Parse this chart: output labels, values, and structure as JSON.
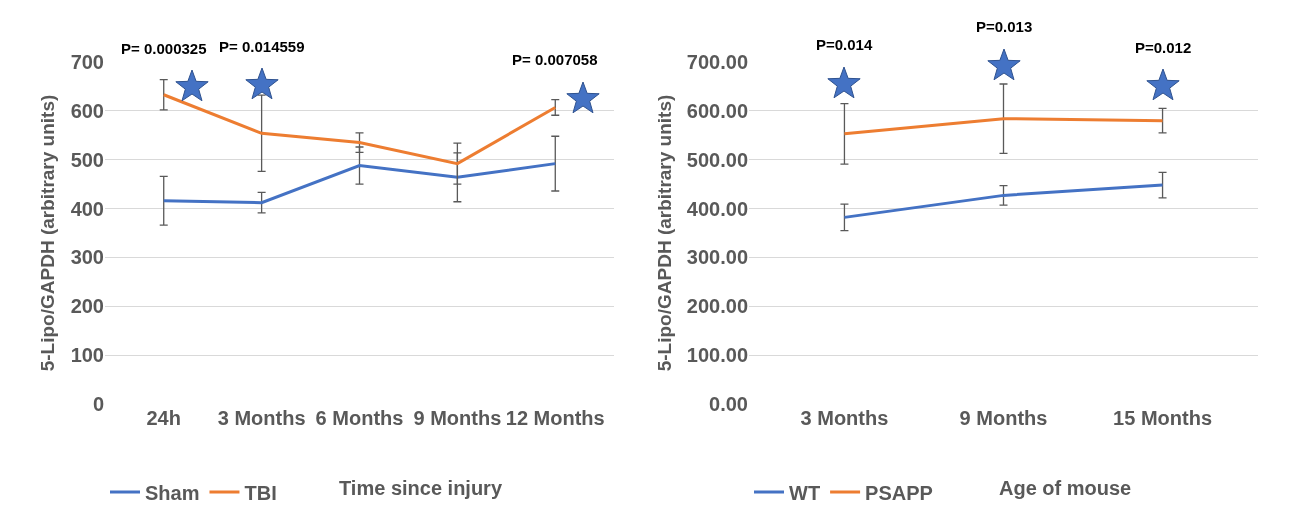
{
  "chart_data": [
    {
      "type": "line",
      "ylabel": "5-Lipo/GAPDH (arbitrary units)",
      "xlabel": "Time since injury",
      "categories": [
        "24h",
        "3 Months",
        "6 Months",
        "9 Months",
        "12 Months"
      ],
      "series": [
        {
          "name": "Sham",
          "color": "#4472c4",
          "values": [
            416,
            412,
            488,
            464,
            492
          ],
          "errors": [
            50,
            21,
            38,
            50,
            56
          ]
        },
        {
          "name": "TBI",
          "color": "#ed7d31",
          "values": [
            633,
            554,
            535,
            492,
            607
          ],
          "errors": [
            31,
            78,
            20,
            42,
            16
          ]
        }
      ],
      "ylim": [
        0,
        700
      ],
      "yticks": [
        0,
        100,
        200,
        300,
        400,
        500,
        600,
        700
      ],
      "grid": "y",
      "legend": "bottom",
      "marker": "none",
      "annotations": [
        {
          "text": "P= 0.000325",
          "x": "24h",
          "y": 650
        },
        {
          "text": "P= 0.014559",
          "x": "3 Months",
          "y": 654
        },
        {
          "text": "P= 0.007058",
          "x": "12 Months",
          "y": 627
        }
      ]
    },
    {
      "type": "line",
      "ylabel": "5-Lipo/GAPDH (arbitrary units)",
      "xlabel": "Age of mouse",
      "categories": [
        "3 Months",
        "9 Months",
        "15 Months"
      ],
      "series": [
        {
          "name": "WT",
          "color": "#4472c4",
          "values": [
            382,
            427,
            448
          ],
          "errors": [
            27,
            20,
            26
          ]
        },
        {
          "name": "PSAPP",
          "color": "#ed7d31",
          "values": [
            553,
            584,
            580
          ],
          "errors": [
            62,
            71,
            25
          ]
        }
      ],
      "ylim": [
        0,
        700
      ],
      "yticks": [
        {
          "value": 0,
          "label": "0.00"
        },
        {
          "value": 100,
          "label": "100.00"
        },
        {
          "value": 200,
          "label": "200.00"
        },
        {
          "value": 300,
          "label": "300.00"
        },
        {
          "value": 400,
          "label": "400.00"
        },
        {
          "value": 500,
          "label": "500.00"
        },
        {
          "value": 600,
          "label": "600.00"
        },
        {
          "value": 700,
          "label": "700.00"
        }
      ],
      "grid": "y",
      "legend": "bottom",
      "marker": "none",
      "annotations": [
        {
          "text": "P=0.014",
          "x": "3 Months",
          "y": 658
        },
        {
          "text": "P=0.013",
          "x": "9 Months",
          "y": 694
        },
        {
          "text": "P=0.012",
          "x": "15 Months",
          "y": 652
        }
      ]
    }
  ]
}
